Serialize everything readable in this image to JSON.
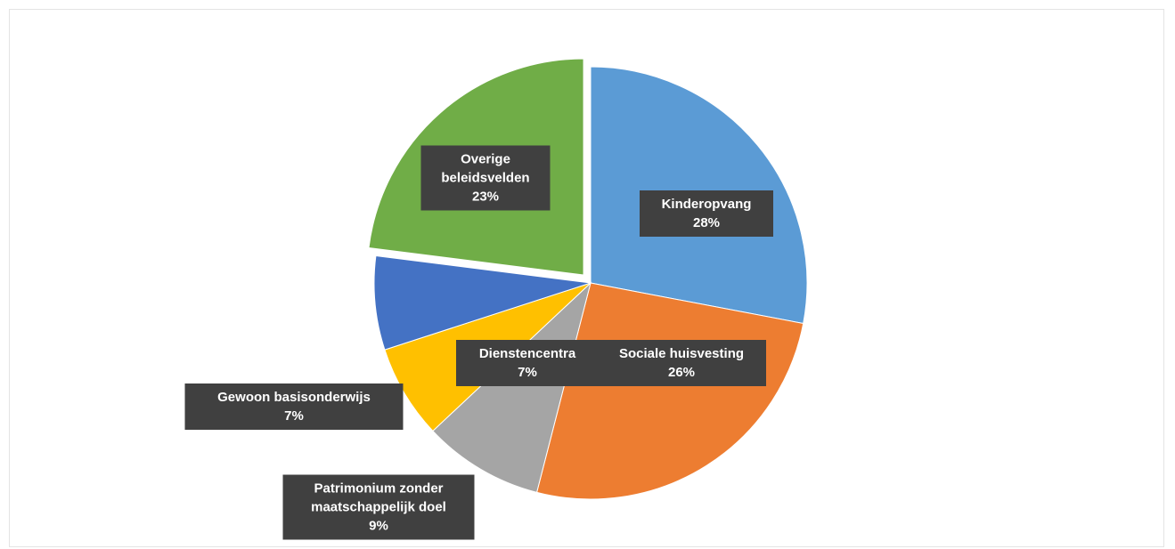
{
  "chart_data": {
    "type": "pie",
    "categories": [
      "Kinderopvang",
      "Sociale huisvesting",
      "Patrimonium zonder maatschappelijk doel",
      "Gewoon basisonderwijs",
      "Dienstencentra",
      "Overige beleidsvelden"
    ],
    "values": [
      28,
      26,
      9,
      7,
      7,
      23
    ],
    "value_labels": [
      "28%",
      "26%",
      "9%",
      "7%",
      "7%",
      "23%"
    ],
    "colors": [
      "#5b9bd5",
      "#ed7d31",
      "#a5a5a5",
      "#ffc000",
      "#4472c4",
      "#70ad47"
    ],
    "exploded": [
      false,
      false,
      false,
      false,
      false,
      true
    ]
  }
}
